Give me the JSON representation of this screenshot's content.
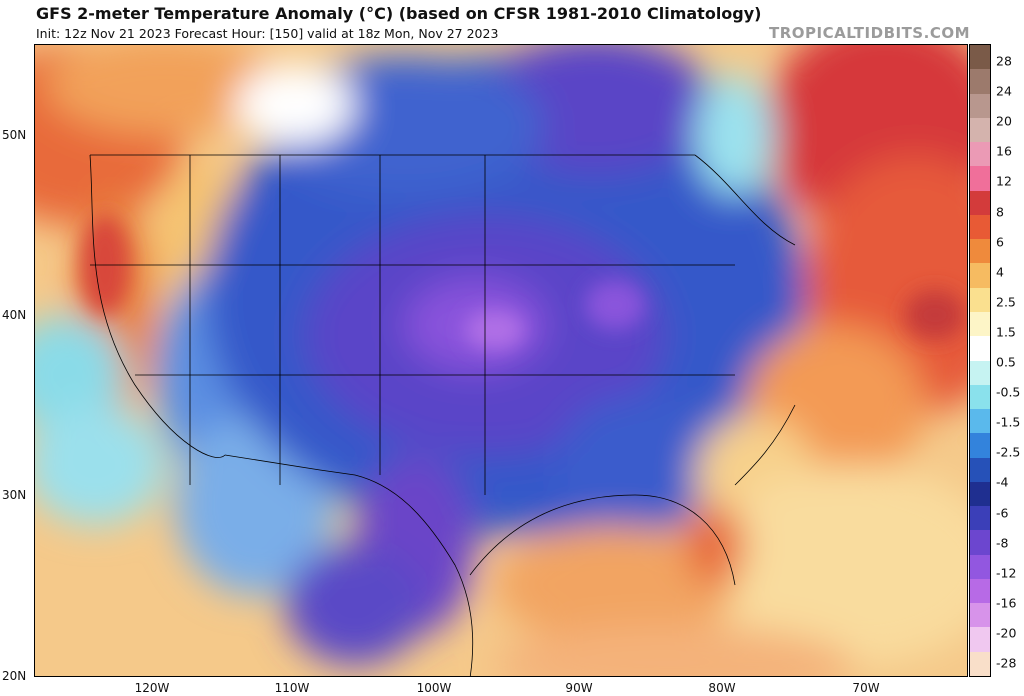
{
  "header": {
    "title": "GFS 2-meter Temperature Anomaly (°C) (based on CFSR 1981-2010 Climatology)",
    "subtitle": "Init: 12z Nov 21 2023   Forecast Hour: [150]   valid at 18z Mon, Nov 27 2023",
    "brand": "TROPICALTIDBITS.COM"
  },
  "map": {
    "lat_labels": [
      "50N",
      "40N",
      "30N",
      "20N"
    ],
    "lon_labels": [
      "120W",
      "110W",
      "100W",
      "90W",
      "80W",
      "70W"
    ]
  },
  "colorbar": {
    "labels": [
      "28",
      "24",
      "20",
      "16",
      "12",
      "8",
      "6",
      "4",
      "2.5",
      "1.5",
      "0.5",
      "-0.5",
      "-1.5",
      "-2.5",
      "-4",
      "-6",
      "-8",
      "-12",
      "-16",
      "-20",
      "-28"
    ],
    "colors": [
      "#7a5a48",
      "#9c7a6c",
      "#b8978e",
      "#d4b3ad",
      "#eb9ab5",
      "#f06f9a",
      "#d33b3b",
      "#e85a35",
      "#ef8a3c",
      "#f6bb61",
      "#fae08f",
      "#fdf5c7",
      "#ffffff",
      "#c6f3f2",
      "#8ae1ec",
      "#5ab9ec",
      "#3383dc",
      "#2651b8",
      "#1f2f90",
      "#3b3fb8",
      "#6c46cf",
      "#9257e0",
      "#b76ae6",
      "#d793ea",
      "#f0c8f0",
      "#f9dfc9"
    ]
  }
}
